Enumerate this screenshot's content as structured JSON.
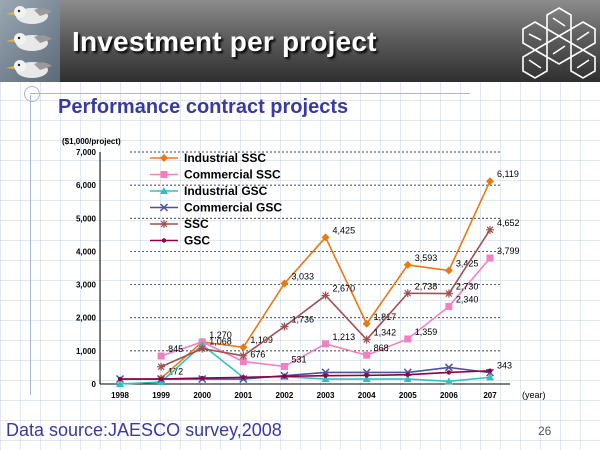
{
  "slide": {
    "title": "Investment per project",
    "subtitle": "Performance contract projects",
    "footer": "Data source:JAESCO survey,2008",
    "page_number": "26"
  },
  "chart_data": {
    "type": "line",
    "ylabel": "($1,000/project)",
    "xlabel": "(year)",
    "categories": [
      "1998",
      "1999",
      "2000",
      "2001",
      "2002",
      "2003",
      "2004",
      "2005",
      "2006",
      "207"
    ],
    "ylim": [
      0,
      7000
    ],
    "yticks": [
      "0",
      "1,000",
      "2,000",
      "3,000",
      "4,000",
      "5,000",
      "6,000",
      "7,000"
    ],
    "legend_position": "top-left",
    "gridlines": "horizontal dashed",
    "series": [
      {
        "name": "Industrial SSC",
        "color": "#e87a12",
        "marker": "diamond",
        "values": [
          null,
          172,
          1270,
          1109,
          3033,
          4425,
          1817,
          3593,
          3425,
          6119
        ],
        "labels": [
          "",
          "172",
          "1,270",
          "1,109",
          "3,033",
          "4,425",
          "1,817",
          "3,593",
          "3,425",
          "6,119"
        ]
      },
      {
        "name": "Commercial SSC",
        "color": "#f080c0",
        "marker": "square",
        "values": [
          null,
          845,
          1270,
          676,
          531,
          1213,
          868,
          1359,
          2340,
          3799
        ],
        "labels": [
          "",
          "845",
          "",
          "676",
          "531",
          "1,213",
          "868",
          "1,359",
          "2,340",
          "3,799"
        ]
      },
      {
        "name": "Industrial GSC",
        "color": "#30c0c0",
        "marker": "triangle",
        "values": [
          0,
          60,
          1180,
          200,
          220,
          150,
          150,
          150,
          80,
          200
        ],
        "labels": [
          "",
          "",
          "",
          "",
          "",
          "",
          "",
          "",
          "",
          ""
        ]
      },
      {
        "name": "Commercial GSC",
        "color": "#5050a0",
        "marker": "x",
        "values": [
          150,
          150,
          150,
          150,
          250,
          350,
          350,
          350,
          500,
          343
        ],
        "labels": [
          "",
          "",
          "",
          "",
          "",
          "",
          "",
          "",
          "",
          "343"
        ]
      },
      {
        "name": "SSC",
        "color": "#a05050",
        "marker": "star",
        "values": [
          null,
          520,
          1068,
          850,
          1736,
          2670,
          1342,
          2738,
          2730,
          4652
        ],
        "labels": [
          "",
          "",
          "1,068",
          "",
          "1,736",
          "2,670",
          "1,342",
          "2,738",
          "2,730",
          "4,652"
        ]
      },
      {
        "name": "GSC",
        "color": "#900040",
        "marker": "dot",
        "values": [
          150,
          150,
          180,
          200,
          230,
          250,
          260,
          280,
          350,
          400
        ],
        "labels": [
          "",
          "",
          "",
          "",
          "",
          "",
          "",
          "",
          "",
          ""
        ]
      }
    ]
  }
}
